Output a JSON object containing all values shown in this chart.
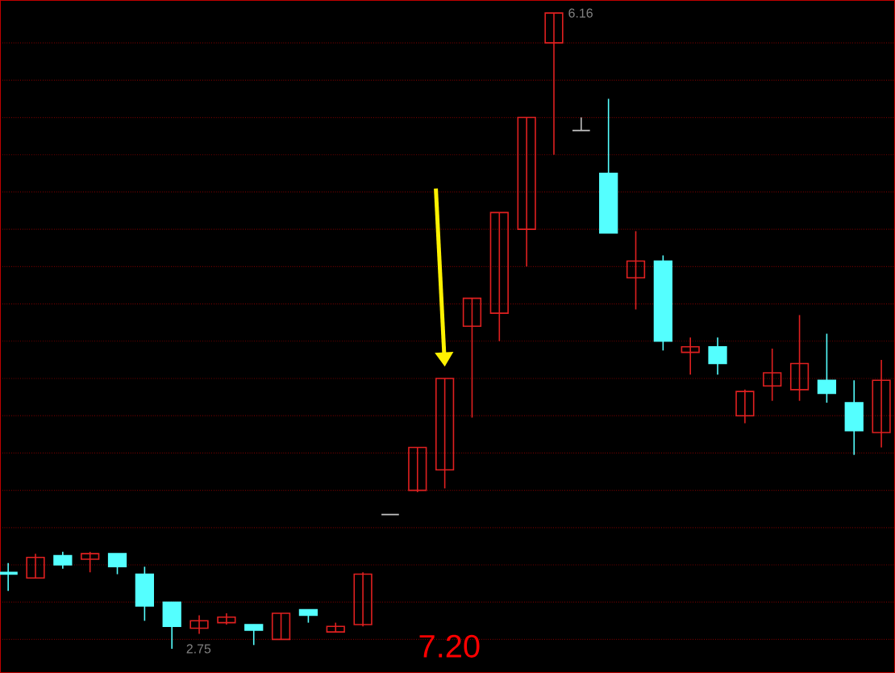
{
  "chart_data": {
    "type": "candlestick",
    "categories": [
      null,
      null,
      null,
      null,
      null,
      null,
      null,
      null,
      null,
      null,
      null,
      null,
      null,
      null,
      null,
      null,
      null,
      null,
      null,
      null,
      null,
      null,
      null,
      null,
      null,
      null,
      null,
      null,
      null,
      null,
      null,
      null,
      null
    ],
    "ohlc": [
      [
        3.16,
        3.21,
        3.06,
        3.15
      ],
      [
        3.13,
        3.26,
        3.13,
        3.24
      ],
      [
        3.25,
        3.27,
        3.18,
        3.2
      ],
      [
        3.23,
        3.27,
        3.16,
        3.26
      ],
      [
        3.26,
        3.26,
        3.15,
        3.19
      ],
      [
        3.15,
        3.19,
        2.9,
        2.98
      ],
      [
        3.0,
        3.0,
        2.75,
        2.87
      ],
      [
        2.86,
        2.93,
        2.83,
        2.9
      ],
      [
        2.89,
        2.94,
        2.88,
        2.92
      ],
      [
        2.88,
        2.88,
        2.77,
        2.85
      ],
      [
        2.8,
        2.94,
        2.8,
        2.94
      ],
      [
        2.96,
        2.96,
        2.89,
        2.93
      ],
      [
        2.84,
        2.89,
        2.84,
        2.87
      ],
      [
        2.88,
        3.16,
        2.87,
        3.15
      ],
      [
        3.47,
        3.47,
        3.47,
        3.47
      ],
      [
        3.6,
        3.83,
        3.59,
        3.83
      ],
      [
        3.71,
        4.2,
        3.61,
        4.2
      ],
      [
        4.48,
        4.63,
        3.99,
        4.63
      ],
      [
        4.55,
        5.09,
        4.4,
        5.09
      ],
      [
        5.0,
        5.6,
        4.8,
        5.6
      ],
      [
        6.0,
        6.16,
        5.4,
        6.16
      ],
      [
        5.53,
        5.6,
        5.53,
        5.53
      ],
      [
        5.3,
        5.7,
        4.98,
        4.98
      ],
      [
        4.74,
        4.99,
        4.57,
        4.83
      ],
      [
        4.83,
        4.86,
        4.35,
        4.4
      ],
      [
        4.34,
        4.42,
        4.22,
        4.37
      ],
      [
        4.37,
        4.42,
        4.22,
        4.28
      ],
      [
        4.0,
        4.14,
        3.96,
        4.13
      ],
      [
        4.16,
        4.36,
        4.08,
        4.23
      ],
      [
        4.14,
        4.54,
        4.08,
        4.28
      ],
      [
        4.19,
        4.44,
        4.07,
        4.12
      ],
      [
        4.07,
        4.19,
        3.79,
        3.92
      ],
      [
        3.91,
        4.3,
        3.83,
        4.19
      ]
    ],
    "colors": [
      "#54ffff",
      "#e02020",
      "#54ffff",
      "#e02020",
      "#54ffff",
      "#54ffff",
      "#54ffff",
      "#e02020",
      "#e02020",
      "#54ffff",
      "#e02020",
      "#54ffff",
      "#e02020",
      "#e02020",
      "#c0c0c0",
      "#e02020",
      "#e02020",
      "#e02020",
      "#e02020",
      "#e02020",
      "#e02020",
      "#c0c0c0",
      "#54ffff",
      "#e02020",
      "#54ffff",
      "#e02020",
      "#54ffff",
      "#e02020",
      "#e02020",
      "#e02020",
      "#54ffff",
      "#54ffff",
      "#e02020"
    ],
    "ylim": [
      2.62,
      6.23
    ],
    "yticks": [
      {
        "value": 2.8,
        "label": null
      },
      {
        "value": 3.0,
        "label": null
      },
      {
        "value": 3.2,
        "label": null
      },
      {
        "value": 3.4,
        "label": null
      },
      {
        "value": 3.6,
        "label": null
      },
      {
        "value": 3.8,
        "label": null
      },
      {
        "value": 4.0,
        "label": null
      },
      {
        "value": 4.2,
        "label": null
      },
      {
        "value": 4.4,
        "label": null
      },
      {
        "value": 4.6,
        "label": null
      },
      {
        "value": 4.8,
        "label": null
      },
      {
        "value": 5.0,
        "label": null
      },
      {
        "value": 5.2,
        "label": null
      },
      {
        "value": 5.4,
        "label": null
      },
      {
        "value": 5.6,
        "label": null
      },
      {
        "value": 5.8,
        "label": null
      },
      {
        "value": 6.0,
        "label": null
      }
    ],
    "grid": "y",
    "tick_labels": false,
    "annotations": [
      "6.16",
      "2.75",
      "7.20"
    ]
  }
}
